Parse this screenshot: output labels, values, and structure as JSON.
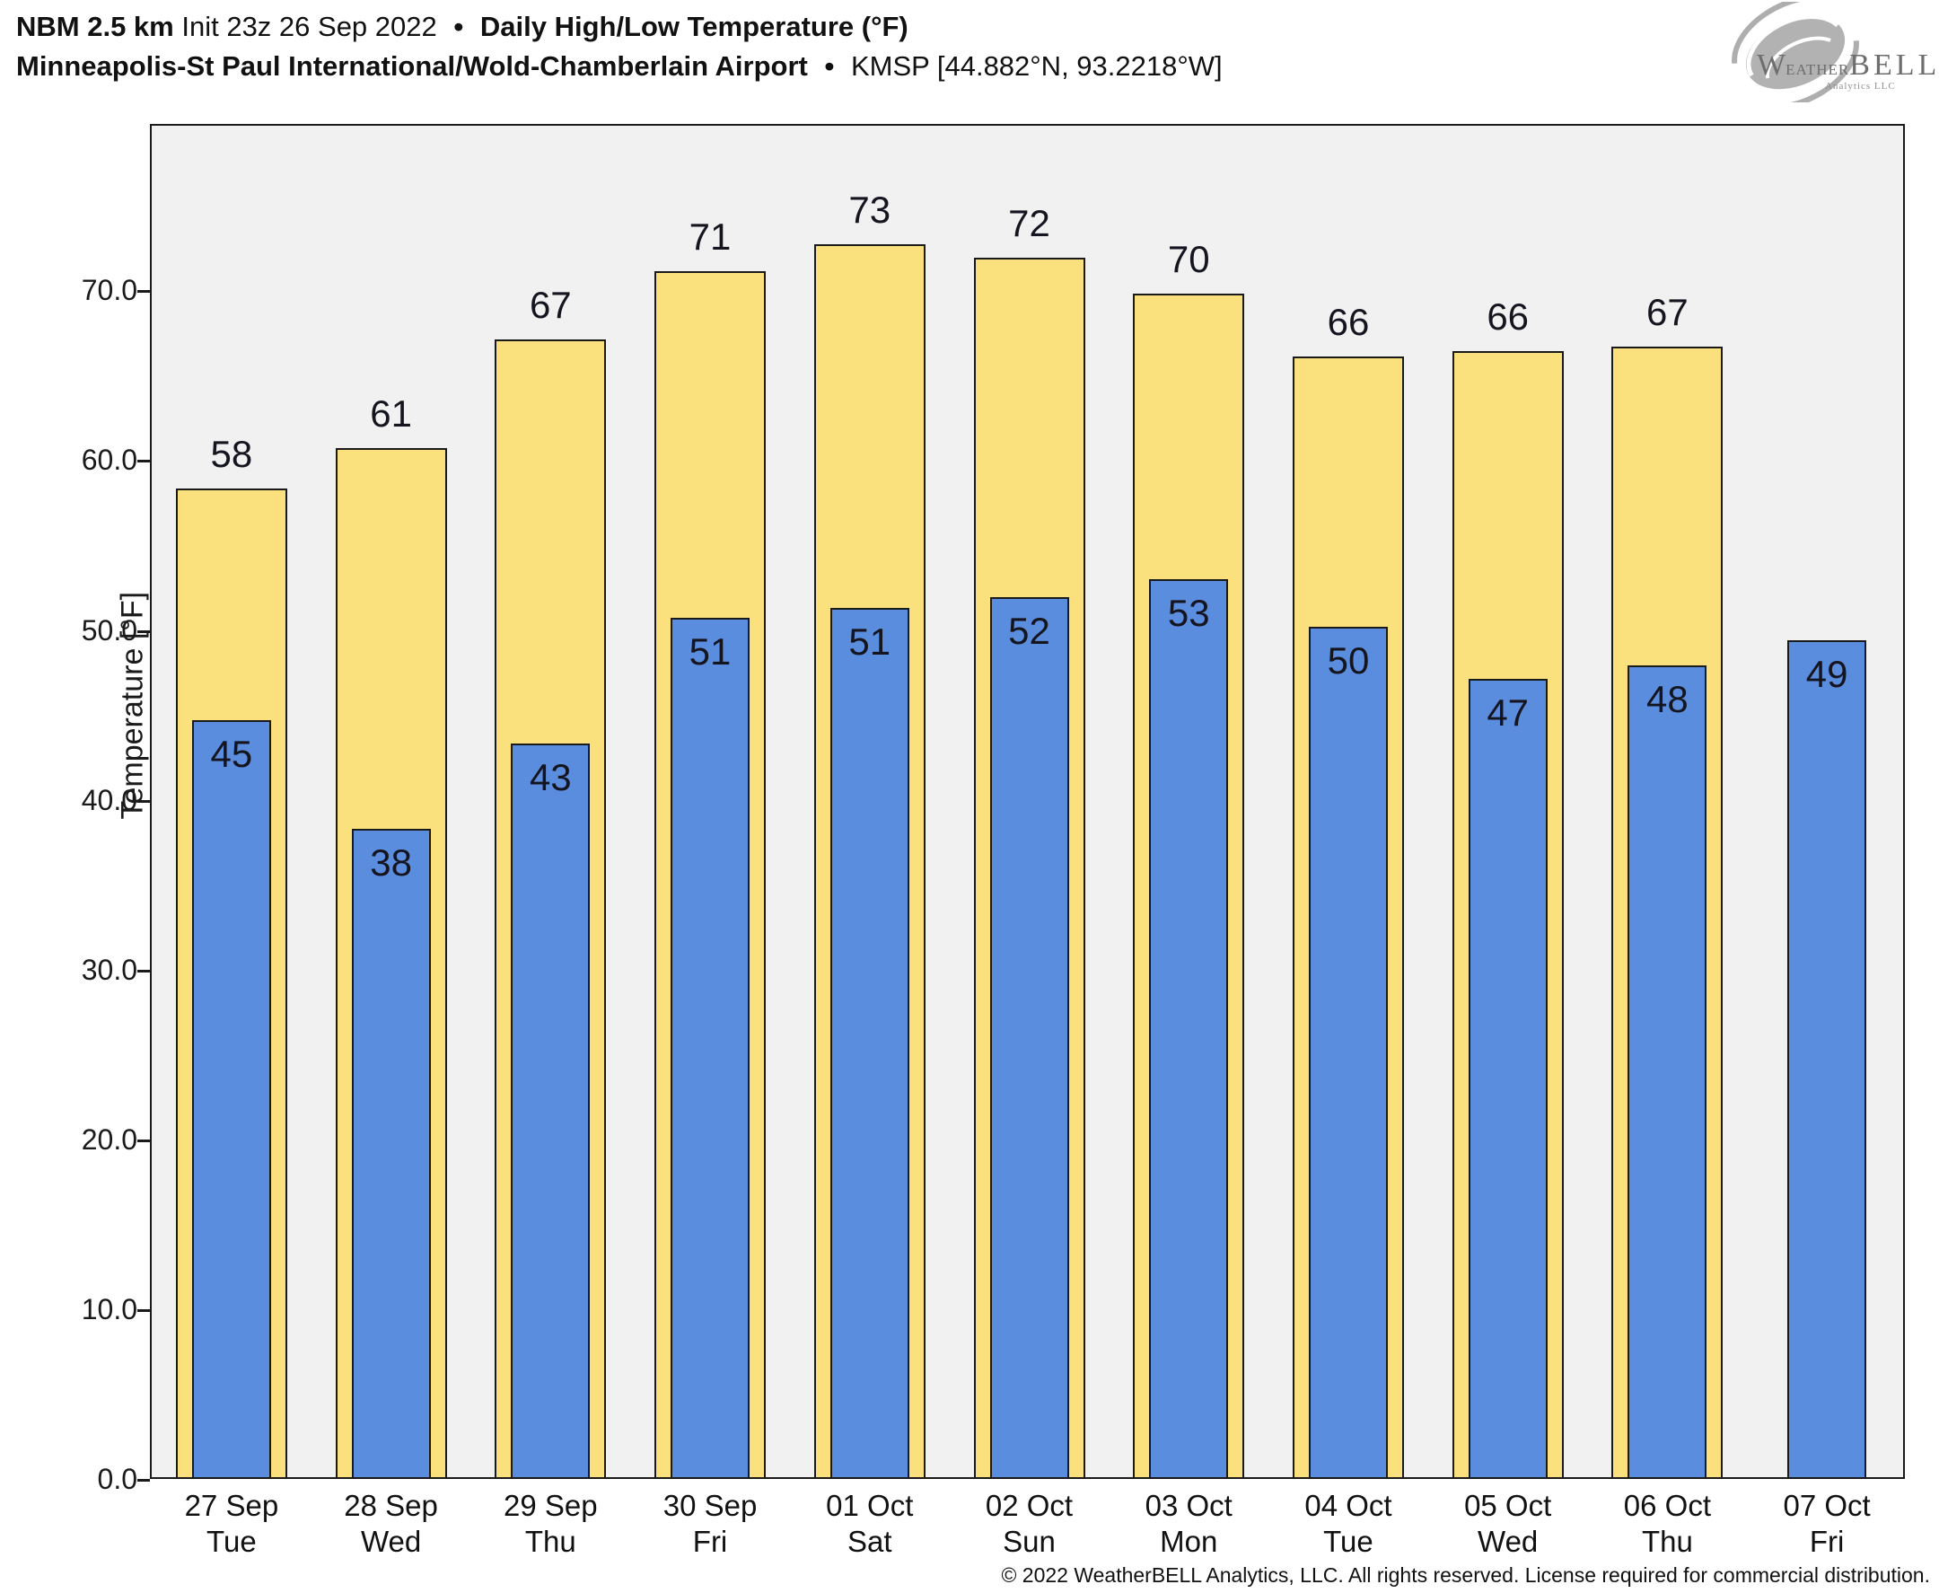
{
  "header": {
    "model": "NBM 2.5 km",
    "init": "Init 23z 26 Sep 2022",
    "bullet": "•",
    "product": "Daily High/Low Temperature (°F)",
    "station": "Minneapolis-St Paul International/Wold-Chamberlain Airport",
    "station_id": "KMSP [44.882°N, 93.2218°W]"
  },
  "logo": {
    "initial": "W",
    "weather": "eather",
    "bell": "BELL",
    "subtext": "Analytics LLC"
  },
  "footer": {
    "copyright": "© 2022 WeatherBELL Analytics, LLC. All rights reserved. License required for commercial distribution."
  },
  "colors": {
    "high_fill": "#fae17e",
    "low_fill": "#5b8dde",
    "bar_edge": "#1a1a1a",
    "plot_bg": "#f1f1f1",
    "figure_bg": "#ffffff",
    "logo_gray": "#6e6e6e"
  },
  "chart_data": {
    "type": "bar",
    "title": "NBM 2.5 km Init 23z 26 Sep 2022 — Daily High/Low Temperature (°F) — Minneapolis-St Paul International/Wold-Chamberlain Airport (KMSP)",
    "xlabel": "",
    "ylabel": "Temperature [°F]",
    "ylim": [
      0,
      79.8
    ],
    "grid": false,
    "legend": "none",
    "yticks": [
      {
        "value": 0,
        "label": "0.0"
      },
      {
        "value": 10,
        "label": "10.0"
      },
      {
        "value": 20,
        "label": "20.0"
      },
      {
        "value": 30,
        "label": "30.0"
      },
      {
        "value": 40,
        "label": "40.0"
      },
      {
        "value": 50,
        "label": "50.0"
      },
      {
        "value": 60,
        "label": "60.0"
      },
      {
        "value": 70,
        "label": "70.0"
      }
    ],
    "categories": [
      {
        "date": "27 Sep",
        "day": "Tue"
      },
      {
        "date": "28 Sep",
        "day": "Wed"
      },
      {
        "date": "29 Sep",
        "day": "Thu"
      },
      {
        "date": "30 Sep",
        "day": "Fri"
      },
      {
        "date": "01 Oct",
        "day": "Sat"
      },
      {
        "date": "02 Oct",
        "day": "Sun"
      },
      {
        "date": "03 Oct",
        "day": "Mon"
      },
      {
        "date": "04 Oct",
        "day": "Tue"
      },
      {
        "date": "05 Oct",
        "day": "Wed"
      },
      {
        "date": "06 Oct",
        "day": "Thu"
      },
      {
        "date": "07 Oct",
        "day": "Fri"
      }
    ],
    "series": [
      {
        "name": "high",
        "values": [
          58.2,
          60.6,
          67.0,
          71.0,
          72.6,
          71.8,
          69.7,
          66.0,
          66.3,
          66.6,
          null
        ],
        "labels": [
          "58",
          "61",
          "67",
          "71",
          "73",
          "72",
          "70",
          "66",
          "66",
          "67",
          null
        ]
      },
      {
        "name": "low",
        "values": [
          44.6,
          38.2,
          43.2,
          50.6,
          51.2,
          51.8,
          52.9,
          50.1,
          47.0,
          47.8,
          49.3
        ],
        "labels": [
          "45",
          "38",
          "43",
          "51",
          "51",
          "52",
          "53",
          "50",
          "47",
          "48",
          "49"
        ]
      }
    ]
  }
}
